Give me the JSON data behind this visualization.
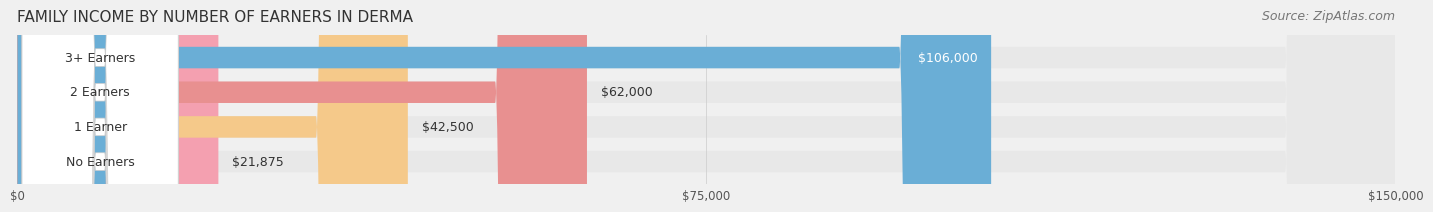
{
  "title": "FAMILY INCOME BY NUMBER OF EARNERS IN DERMA",
  "source": "Source: ZipAtlas.com",
  "categories": [
    "No Earners",
    "1 Earner",
    "2 Earners",
    "3+ Earners"
  ],
  "values": [
    21875,
    42500,
    62000,
    106000
  ],
  "bar_colors": [
    "#f4a0b0",
    "#f5c98a",
    "#e89090",
    "#6aaed6"
  ],
  "label_colors": [
    "#000000",
    "#000000",
    "#000000",
    "#ffffff"
  ],
  "value_labels": [
    "$21,875",
    "$42,500",
    "$62,000",
    "$106,000"
  ],
  "xlim": [
    0,
    150000
  ],
  "xticks": [
    0,
    75000,
    150000
  ],
  "xtick_labels": [
    "$0",
    "$75,000",
    "$150,000"
  ],
  "bg_color": "#f0f0f0",
  "bar_bg_color": "#e8e8e8",
  "title_fontsize": 11,
  "source_fontsize": 9,
  "label_fontsize": 9,
  "value_fontsize": 9
}
